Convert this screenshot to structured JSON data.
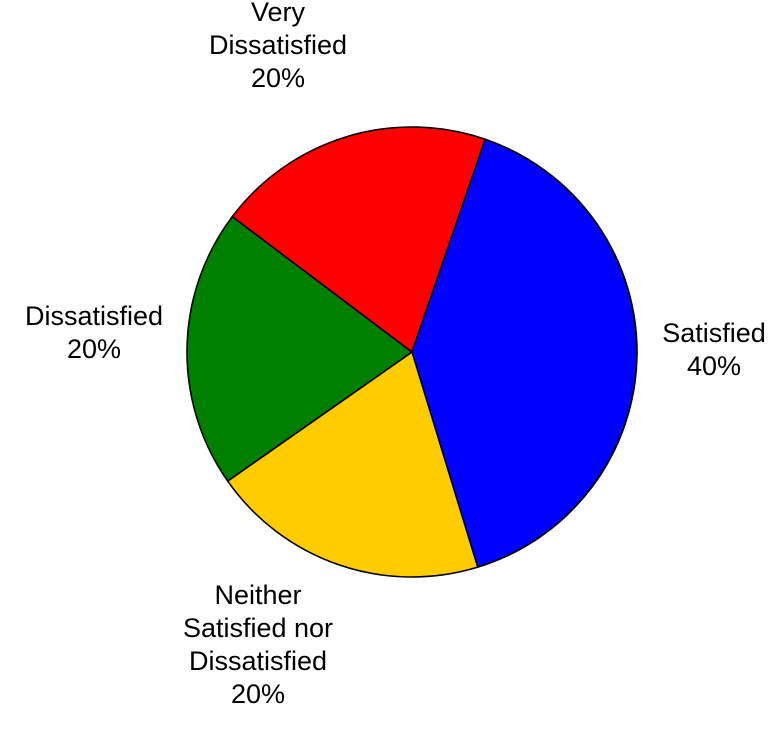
{
  "chart_data": {
    "type": "pie",
    "title": "",
    "slices": [
      {
        "label": "Satisfied",
        "value": 40,
        "percent_label": "40%",
        "color": "#0000ff"
      },
      {
        "label": "Neither Satisfied nor Dissatisfied",
        "value": 20,
        "percent_label": "20%",
        "color": "#ffcc00"
      },
      {
        "label": "Dissatisfied",
        "value": 20,
        "percent_label": "20%",
        "color": "#008000"
      },
      {
        "label": "Very Dissatisfied",
        "value": 20,
        "percent_label": "20%",
        "color": "#ff0000"
      }
    ],
    "label_lines": [
      [
        "Satisfied",
        "40%"
      ],
      [
        "Neither",
        "Satisfied nor",
        "Dissatisfied",
        "20%"
      ],
      [
        "Dissatisfied",
        "20%"
      ],
      [
        "Very",
        "Dissatisfied",
        "20%"
      ]
    ],
    "legend": false
  }
}
